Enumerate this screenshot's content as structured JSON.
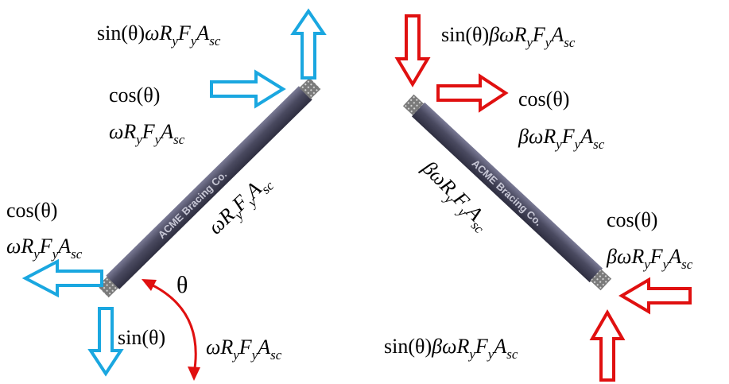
{
  "colors": {
    "tension_arrow": "#1aa7e0",
    "compression_arrow": "#e01010",
    "brace_body": "#4a4a60",
    "brace_end": "#6e6e6e",
    "angle_arc": "#e01010"
  },
  "brace_label": "ACME Bracing Co.",
  "angle_symbol": "θ",
  "labels": {
    "left_top_sin": {
      "prefix": "sin(θ)",
      "coef": "ω",
      "term": "R",
      "s1": "y",
      "t2": "F",
      "s2": "y",
      "t3": "A",
      "s3": "sc"
    },
    "left_top_cos_line1": "cos(θ)",
    "left_top_cos_line2": {
      "coef": "ω",
      "term": "R",
      "s1": "y",
      "t2": "F",
      "s2": "y",
      "t3": "A",
      "s3": "sc"
    },
    "left_axial": {
      "coef": "ω",
      "term": "R",
      "s1": "y",
      "t2": "F",
      "s2": "y",
      "t3": "A",
      "s3": "sc"
    },
    "left_bottom_cos_line1": "cos(θ)",
    "left_bottom_cos_line2": {
      "coef": "ω",
      "term": "R",
      "s1": "y",
      "t2": "F",
      "s2": "y",
      "t3": "A",
      "s3": "sc"
    },
    "left_bottom_sin_prefix": "sin(θ)",
    "left_bottom_sin_term": {
      "coef": "ω",
      "term": "R",
      "s1": "y",
      "t2": "F",
      "s2": "y",
      "t3": "A",
      "s3": "sc"
    },
    "right_top_sin": {
      "prefix": "sin(θ)",
      "coef": "βω",
      "term": "R",
      "s1": "y",
      "t2": "F",
      "s2": "y",
      "t3": "A",
      "s3": "sc"
    },
    "right_top_cos_line1": "cos(θ)",
    "right_top_cos_line2": {
      "coef": "βω",
      "term": "R",
      "s1": "y",
      "t2": "F",
      "s2": "y",
      "t3": "A",
      "s3": "sc"
    },
    "right_axial": {
      "coef": "βω",
      "term": "R",
      "s1": "y",
      "t2": "F",
      "s2": "y",
      "t3": "A",
      "s3": "sc"
    },
    "right_bottom_cos_line1": "cos(θ)",
    "right_bottom_cos_line2": {
      "coef": "βω",
      "term": "R",
      "s1": "y",
      "t2": "F",
      "s2": "y",
      "t3": "A",
      "s3": "sc"
    },
    "right_bottom_sin": {
      "prefix": "sin(θ)",
      "coef": "βω",
      "term": "R",
      "s1": "y",
      "t2": "F",
      "s2": "y",
      "t3": "A",
      "s3": "sc"
    }
  }
}
